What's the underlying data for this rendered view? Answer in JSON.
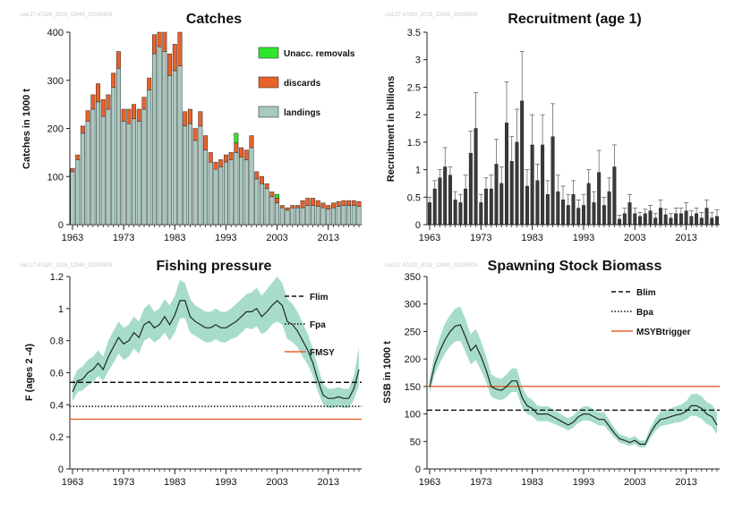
{
  "colors": {
    "landings": "#a9c9c0",
    "discards": "#e8622a",
    "unaccounted": "#2ee62e",
    "recruitment_bar": "#3a3a3a",
    "band": "#a7dccb",
    "line": "#1f2a24",
    "msy": "#e8622a"
  },
  "chart_data": [
    {
      "type": "bar",
      "title": "Catches",
      "ylabel": "Catches in 1000 t",
      "ylim": [
        0,
        400
      ],
      "yticks": [
        0,
        100,
        200,
        300,
        400
      ],
      "xtick_labels": [
        "1963",
        "1973",
        "1983",
        "1993",
        "2003",
        "2013"
      ],
      "x": [
        1963,
        1964,
        1965,
        1966,
        1967,
        1968,
        1969,
        1970,
        1971,
        1972,
        1973,
        1974,
        1975,
        1976,
        1977,
        1978,
        1979,
        1980,
        1981,
        1982,
        1983,
        1984,
        1985,
        1986,
        1987,
        1988,
        1989,
        1990,
        1991,
        1992,
        1993,
        1994,
        1995,
        1996,
        1997,
        1998,
        1999,
        2000,
        2001,
        2002,
        2003,
        2004,
        2005,
        2006,
        2007,
        2008,
        2009,
        2010,
        2011,
        2012,
        2013,
        2014,
        2015,
        2016,
        2017,
        2018,
        2019
      ],
      "legend_position": "top-right",
      "series": [
        {
          "name": "landings",
          "values": [
            110,
            135,
            190,
            215,
            240,
            255,
            225,
            240,
            285,
            325,
            215,
            210,
            220,
            215,
            240,
            280,
            355,
            370,
            360,
            310,
            320,
            330,
            205,
            210,
            175,
            205,
            155,
            130,
            115,
            120,
            130,
            135,
            150,
            140,
            135,
            160,
            95,
            85,
            75,
            58,
            45,
            35,
            30,
            35,
            35,
            35,
            40,
            40,
            38,
            35,
            32,
            35,
            38,
            40,
            40,
            40,
            38
          ]
        },
        {
          "name": "discards",
          "values": [
            7,
            10,
            15,
            22,
            30,
            38,
            35,
            30,
            30,
            35,
            25,
            30,
            30,
            25,
            25,
            25,
            40,
            50,
            45,
            45,
            55,
            75,
            30,
            30,
            25,
            30,
            30,
            20,
            15,
            15,
            15,
            15,
            20,
            20,
            20,
            25,
            15,
            15,
            10,
            10,
            10,
            5,
            5,
            5,
            5,
            15,
            15,
            15,
            12,
            10,
            8,
            10,
            10,
            10,
            10,
            10,
            10
          ]
        },
        {
          "name": "Unacc. removals",
          "values": [
            0,
            0,
            0,
            0,
            0,
            0,
            0,
            0,
            0,
            0,
            0,
            0,
            0,
            0,
            0,
            0,
            0,
            0,
            0,
            0,
            0,
            0,
            0,
            0,
            0,
            0,
            0,
            0,
            0,
            0,
            0,
            0,
            20,
            0,
            0,
            0,
            0,
            0,
            0,
            0,
            8,
            0,
            0,
            0,
            0,
            0,
            0,
            0,
            0,
            0,
            0,
            0,
            0,
            0,
            0,
            0,
            0
          ]
        }
      ]
    },
    {
      "type": "bar",
      "title": "Recruitment (age 1)",
      "ylabel": "Recruitment in billions",
      "ylim": [
        0,
        3.5
      ],
      "yticks": [
        0,
        0.5,
        1,
        1.5,
        2,
        2.5,
        3,
        3.5
      ],
      "xtick_labels": [
        "1963",
        "1973",
        "1983",
        "1993",
        "2003",
        "2013"
      ],
      "x": [
        1963,
        1964,
        1965,
        1966,
        1967,
        1968,
        1969,
        1970,
        1971,
        1972,
        1973,
        1974,
        1975,
        1976,
        1977,
        1978,
        1979,
        1980,
        1981,
        1982,
        1983,
        1984,
        1985,
        1986,
        1987,
        1988,
        1989,
        1990,
        1991,
        1992,
        1993,
        1994,
        1995,
        1996,
        1997,
        1998,
        1999,
        2000,
        2001,
        2002,
        2003,
        2004,
        2005,
        2006,
        2007,
        2008,
        2009,
        2010,
        2011,
        2012,
        2013,
        2014,
        2015,
        2016,
        2017,
        2018,
        2019
      ],
      "values": [
        0.4,
        0.65,
        0.85,
        1.05,
        0.9,
        0.45,
        0.4,
        0.65,
        1.3,
        1.75,
        0.4,
        0.65,
        0.65,
        1.1,
        0.75,
        1.85,
        1.15,
        1.5,
        2.25,
        0.7,
        1.45,
        0.8,
        1.45,
        0.55,
        1.6,
        0.6,
        0.45,
        0.35,
        0.55,
        0.3,
        0.35,
        0.75,
        0.4,
        0.95,
        0.35,
        0.6,
        1.05,
        0.1,
        0.2,
        0.4,
        0.2,
        0.15,
        0.2,
        0.25,
        0.12,
        0.3,
        0.18,
        0.12,
        0.2,
        0.2,
        0.25,
        0.15,
        0.2,
        0.12,
        0.3,
        0.12,
        0.15
      ],
      "upper": [
        0.5,
        0.8,
        1.0,
        1.4,
        1.05,
        0.6,
        0.55,
        0.9,
        1.7,
        2.4,
        0.55,
        0.85,
        0.9,
        1.55,
        1.05,
        2.6,
        1.6,
        2.1,
        3.15,
        1.0,
        2.0,
        1.1,
        2.0,
        0.8,
        2.2,
        0.9,
        0.7,
        0.55,
        0.8,
        0.45,
        0.55,
        1.0,
        0.6,
        1.35,
        0.5,
        0.85,
        1.45,
        0.17,
        0.3,
        0.55,
        0.3,
        0.22,
        0.28,
        0.35,
        0.2,
        0.45,
        0.28,
        0.2,
        0.3,
        0.3,
        0.4,
        0.25,
        0.3,
        0.22,
        0.45,
        0.22,
        0.27
      ]
    },
    {
      "type": "line",
      "title": "Fishing pressure",
      "ylabel": "F (ages 2 -4)",
      "ylim": [
        0,
        1.2
      ],
      "yticks": [
        0,
        0.2,
        0.4,
        0.6,
        0.8,
        1,
        1.2
      ],
      "xtick_labels": [
        "1963",
        "1973",
        "1983",
        "1993",
        "2003",
        "2013"
      ],
      "legend_position": "top-right",
      "reference_lines": [
        {
          "name": "Flim",
          "value": 0.54,
          "style": "dashed"
        },
        {
          "name": "Fpa",
          "value": 0.39,
          "style": "dotted"
        },
        {
          "name": "FMSY",
          "value": 0.31,
          "style": "solid"
        }
      ],
      "x": [
        1963,
        1964,
        1965,
        1966,
        1967,
        1968,
        1969,
        1970,
        1971,
        1972,
        1973,
        1974,
        1975,
        1976,
        1977,
        1978,
        1979,
        1980,
        1981,
        1982,
        1983,
        1984,
        1985,
        1986,
        1987,
        1988,
        1989,
        1990,
        1991,
        1992,
        1993,
        1994,
        1995,
        1996,
        1997,
        1998,
        1999,
        2000,
        2001,
        2002,
        2003,
        2004,
        2005,
        2006,
        2007,
        2008,
        2009,
        2010,
        2011,
        2012,
        2013,
        2014,
        2015,
        2016,
        2017,
        2018,
        2019
      ],
      "values": [
        0.48,
        0.55,
        0.56,
        0.6,
        0.62,
        0.66,
        0.62,
        0.7,
        0.76,
        0.82,
        0.78,
        0.8,
        0.85,
        0.82,
        0.9,
        0.92,
        0.88,
        0.9,
        0.95,
        0.9,
        0.96,
        1.05,
        1.05,
        0.95,
        0.92,
        0.9,
        0.88,
        0.88,
        0.9,
        0.88,
        0.88,
        0.9,
        0.92,
        0.95,
        0.98,
        0.98,
        1.0,
        0.95,
        0.98,
        1.02,
        1.05,
        1.02,
        0.92,
        0.9,
        0.86,
        0.8,
        0.74,
        0.66,
        0.55,
        0.46,
        0.44,
        0.44,
        0.45,
        0.44,
        0.44,
        0.5,
        0.62
      ],
      "upper": [
        0.55,
        0.62,
        0.64,
        0.68,
        0.7,
        0.74,
        0.7,
        0.8,
        0.86,
        0.92,
        0.88,
        0.9,
        0.95,
        0.92,
        1.0,
        1.03,
        0.98,
        1.0,
        1.06,
        1.02,
        1.08,
        1.18,
        1.16,
        1.06,
        1.02,
        1.0,
        0.98,
        0.98,
        1.0,
        0.98,
        0.98,
        1.0,
        1.03,
        1.06,
        1.09,
        1.1,
        1.13,
        1.08,
        1.12,
        1.16,
        1.2,
        1.16,
        1.06,
        1.03,
        0.98,
        0.91,
        0.84,
        0.75,
        0.63,
        0.53,
        0.5,
        0.5,
        0.51,
        0.5,
        0.5,
        0.58,
        0.76
      ],
      "lower": [
        0.42,
        0.48,
        0.49,
        0.52,
        0.54,
        0.58,
        0.55,
        0.61,
        0.66,
        0.72,
        0.68,
        0.7,
        0.75,
        0.72,
        0.8,
        0.82,
        0.79,
        0.81,
        0.85,
        0.8,
        0.85,
        0.94,
        0.94,
        0.85,
        0.83,
        0.81,
        0.79,
        0.79,
        0.81,
        0.79,
        0.79,
        0.81,
        0.82,
        0.85,
        0.88,
        0.87,
        0.89,
        0.84,
        0.86,
        0.9,
        0.92,
        0.9,
        0.81,
        0.79,
        0.76,
        0.7,
        0.65,
        0.58,
        0.48,
        0.4,
        0.38,
        0.38,
        0.39,
        0.38,
        0.38,
        0.43,
        0.52
      ]
    },
    {
      "type": "line",
      "title": "Spawning Stock Biomass",
      "ylabel": "SSB in 1000 t",
      "ylim": [
        0,
        350
      ],
      "yticks": [
        0,
        50,
        100,
        150,
        200,
        250,
        300,
        350
      ],
      "xtick_labels": [
        "1963",
        "1973",
        "1983",
        "1993",
        "2003",
        "2013"
      ],
      "legend_position": "top-right",
      "reference_lines": [
        {
          "name": "Blim",
          "value": 107,
          "style": "dashed"
        },
        {
          "name": "Bpa",
          "value": 150,
          "style": "dotted"
        },
        {
          "name": "MSYBtrigger",
          "value": 150,
          "style": "solid"
        }
      ],
      "x": [
        1963,
        1964,
        1965,
        1966,
        1967,
        1968,
        1969,
        1970,
        1971,
        1972,
        1973,
        1974,
        1975,
        1976,
        1977,
        1978,
        1979,
        1980,
        1981,
        1982,
        1983,
        1984,
        1985,
        1986,
        1987,
        1988,
        1989,
        1990,
        1991,
        1992,
        1993,
        1994,
        1995,
        1996,
        1997,
        1998,
        1999,
        2000,
        2001,
        2002,
        2003,
        2004,
        2005,
        2006,
        2007,
        2008,
        2009,
        2010,
        2011,
        2012,
        2013,
        2014,
        2015,
        2016,
        2017,
        2018,
        2019
      ],
      "values": [
        150,
        190,
        215,
        235,
        250,
        260,
        262,
        240,
        215,
        225,
        205,
        180,
        150,
        145,
        143,
        150,
        160,
        160,
        130,
        115,
        110,
        100,
        100,
        100,
        95,
        90,
        85,
        80,
        85,
        95,
        100,
        100,
        95,
        90,
        90,
        78,
        65,
        55,
        52,
        48,
        52,
        45,
        45,
        65,
        80,
        90,
        92,
        95,
        98,
        100,
        105,
        115,
        115,
        110,
        100,
        95,
        80
      ],
      "upper": [
        165,
        210,
        240,
        265,
        280,
        292,
        295,
        272,
        245,
        255,
        233,
        205,
        172,
        166,
        164,
        172,
        183,
        183,
        149,
        132,
        126,
        115,
        114,
        114,
        109,
        103,
        97,
        92,
        97,
        108,
        114,
        114,
        108,
        103,
        103,
        89,
        75,
        63,
        60,
        56,
        60,
        52,
        52,
        75,
        92,
        104,
        107,
        110,
        114,
        117,
        123,
        136,
        137,
        132,
        122,
        117,
        102
      ],
      "lower": [
        137,
        172,
        193,
        210,
        223,
        232,
        233,
        213,
        190,
        198,
        180,
        158,
        131,
        127,
        125,
        131,
        140,
        140,
        113,
        100,
        96,
        87,
        87,
        87,
        83,
        79,
        75,
        70,
        75,
        84,
        88,
        88,
        84,
        79,
        79,
        68,
        57,
        48,
        45,
        42,
        45,
        39,
        39,
        56,
        69,
        78,
        80,
        82,
        84,
        86,
        90,
        97,
        96,
        91,
        82,
        77,
        63
      ]
    }
  ]
}
